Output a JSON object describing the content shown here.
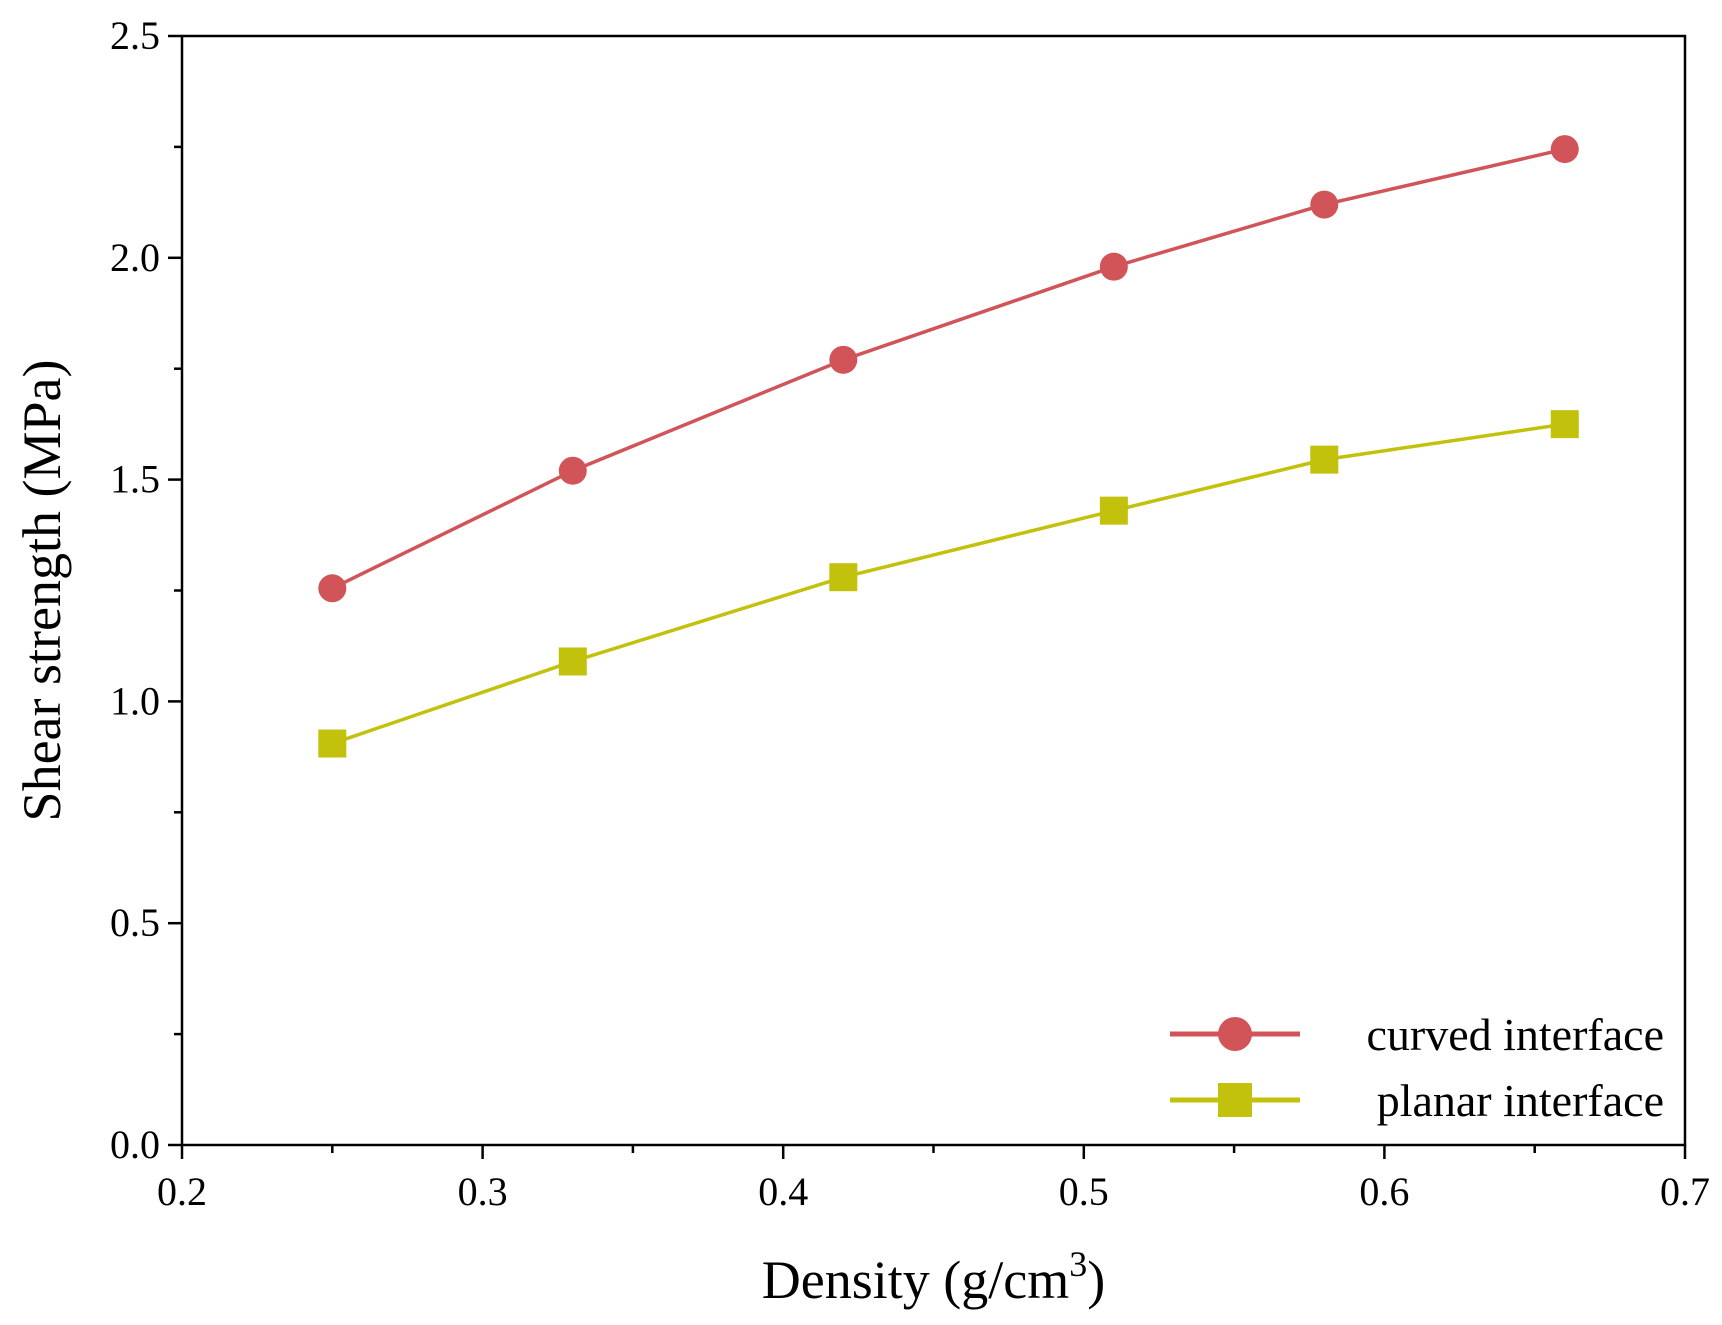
{
  "chart_data": {
    "type": "line",
    "title": "",
    "xlabel": "Density (g/cm",
    "xlabel_superscript": "3",
    "xlabel_suffix": ")",
    "ylabel": "Shear strength (MPa)",
    "xlim": [
      0.2,
      0.7
    ],
    "ylim": [
      0.0,
      2.5
    ],
    "x_ticks": [
      "0.2",
      "0.3",
      "0.4",
      "0.5",
      "0.6",
      "0.7"
    ],
    "y_ticks": [
      "0.0",
      "0.5",
      "1.0",
      "1.5",
      "2.0",
      "2.5"
    ],
    "grid": false,
    "legend_position": "bottom-right",
    "series": [
      {
        "name": "curved interface",
        "color": "#d05458",
        "marker": "circle",
        "x": [
          0.25,
          0.33,
          0.42,
          0.51,
          0.58,
          0.66
        ],
        "y": [
          1.255,
          1.52,
          1.77,
          1.98,
          2.12,
          2.245
        ]
      },
      {
        "name": "planar interface",
        "color": "#c2c10b",
        "marker": "square",
        "x": [
          0.25,
          0.33,
          0.42,
          0.51,
          0.58,
          0.66
        ],
        "y": [
          0.905,
          1.09,
          1.28,
          1.43,
          1.545,
          1.625
        ]
      }
    ]
  }
}
